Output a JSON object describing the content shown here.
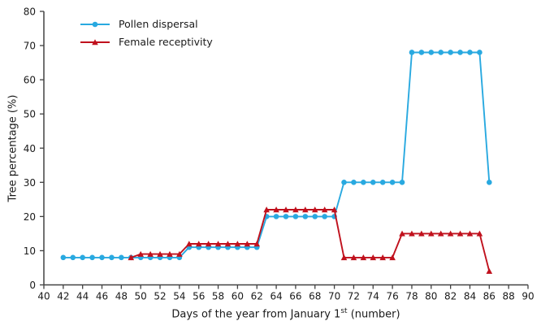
{
  "chart_data": {
    "type": "line",
    "title": "",
    "ylabel": "Tree percentage (%)",
    "xlabel_prefix": "Days of the year from January 1",
    "xlabel_sup": "st",
    "xlabel_suffix": " (number)",
    "xlim": [
      40,
      90
    ],
    "ylim": [
      0,
      80
    ],
    "xtick_step": 2,
    "ytick_step": 10,
    "grid": false,
    "legend_position": "top-left-inside",
    "axis_color": "#424242",
    "text_color": "#1a1a1a",
    "series": [
      {
        "name": "Pollen dispersal",
        "color": "#29a9e0",
        "marker": "circle",
        "points": [
          [
            42,
            8
          ],
          [
            43,
            8
          ],
          [
            44,
            8
          ],
          [
            45,
            8
          ],
          [
            46,
            8
          ],
          [
            47,
            8
          ],
          [
            48,
            8
          ],
          [
            49,
            8
          ],
          [
            50,
            8
          ],
          [
            51,
            8
          ],
          [
            52,
            8
          ],
          [
            53,
            8
          ],
          [
            54,
            8
          ],
          [
            55,
            11
          ],
          [
            56,
            11
          ],
          [
            57,
            11
          ],
          [
            58,
            11
          ],
          [
            59,
            11
          ],
          [
            60,
            11
          ],
          [
            61,
            11
          ],
          [
            62,
            11
          ],
          [
            63,
            20
          ],
          [
            64,
            20
          ],
          [
            65,
            20
          ],
          [
            66,
            20
          ],
          [
            67,
            20
          ],
          [
            68,
            20
          ],
          [
            69,
            20
          ],
          [
            70,
            20
          ],
          [
            71,
            30
          ],
          [
            72,
            30
          ],
          [
            73,
            30
          ],
          [
            74,
            30
          ],
          [
            75,
            30
          ],
          [
            76,
            30
          ],
          [
            77,
            30
          ],
          [
            78,
            68
          ],
          [
            79,
            68
          ],
          [
            80,
            68
          ],
          [
            81,
            68
          ],
          [
            82,
            68
          ],
          [
            83,
            68
          ],
          [
            84,
            68
          ],
          [
            85,
            68
          ],
          [
            86,
            30
          ]
        ]
      },
      {
        "name": "Female receptivity",
        "color": "#c0111d",
        "marker": "triangle",
        "points": [
          [
            49,
            8
          ],
          [
            50,
            9
          ],
          [
            51,
            9
          ],
          [
            52,
            9
          ],
          [
            53,
            9
          ],
          [
            54,
            9
          ],
          [
            55,
            12
          ],
          [
            56,
            12
          ],
          [
            57,
            12
          ],
          [
            58,
            12
          ],
          [
            59,
            12
          ],
          [
            60,
            12
          ],
          [
            61,
            12
          ],
          [
            62,
            12
          ],
          [
            63,
            22
          ],
          [
            64,
            22
          ],
          [
            65,
            22
          ],
          [
            66,
            22
          ],
          [
            67,
            22
          ],
          [
            68,
            22
          ],
          [
            69,
            22
          ],
          [
            70,
            22
          ],
          [
            71,
            8
          ],
          [
            72,
            8
          ],
          [
            73,
            8
          ],
          [
            74,
            8
          ],
          [
            75,
            8
          ],
          [
            76,
            8
          ],
          [
            77,
            15
          ],
          [
            78,
            15
          ],
          [
            79,
            15
          ],
          [
            80,
            15
          ],
          [
            81,
            15
          ],
          [
            82,
            15
          ],
          [
            83,
            15
          ],
          [
            84,
            15
          ],
          [
            85,
            15
          ],
          [
            86,
            4
          ]
        ]
      }
    ]
  }
}
